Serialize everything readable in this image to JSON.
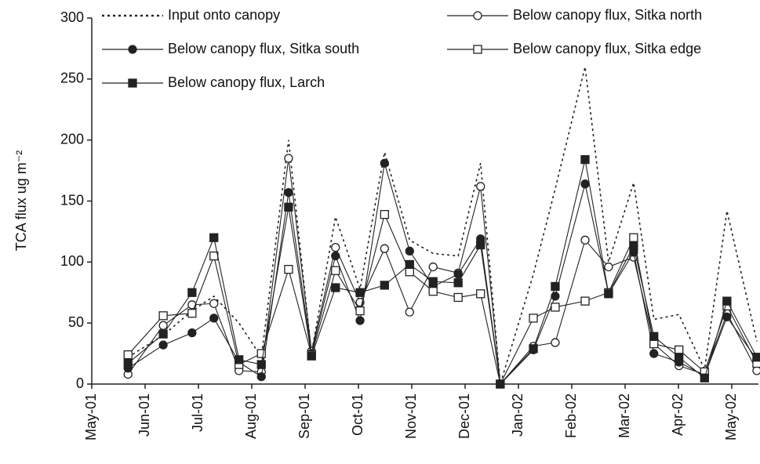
{
  "chart_data": {
    "type": "line",
    "ylabel": "TCA flux ug m⁻²",
    "xlim": [
      0,
      12.5
    ],
    "xticks": [
      {
        "value": 0,
        "label": "May-01"
      },
      {
        "value": 1,
        "label": "Jun-01"
      },
      {
        "value": 2,
        "label": "Jul-01"
      },
      {
        "value": 3,
        "label": "Aug-01"
      },
      {
        "value": 4,
        "label": "Sep-01"
      },
      {
        "value": 5,
        "label": "Oct-01"
      },
      {
        "value": 6,
        "label": "Nov-01"
      },
      {
        "value": 7,
        "label": "Dec-01"
      },
      {
        "value": 8,
        "label": "Jan-02"
      },
      {
        "value": 9,
        "label": "Feb-02"
      },
      {
        "value": 10,
        "label": "Mar-02"
      },
      {
        "value": 11,
        "label": "Apr-02"
      },
      {
        "value": 12,
        "label": "May-02"
      }
    ],
    "ylim": [
      0,
      300
    ],
    "yticks": [
      0,
      50,
      100,
      150,
      200,
      250,
      300
    ],
    "grid": false,
    "x": [
      0.68,
      1.34,
      1.88,
      2.29,
      2.76,
      3.18,
      3.69,
      4.12,
      4.57,
      5.03,
      5.49,
      5.96,
      6.4,
      6.87,
      7.29,
      7.66,
      8.28,
      8.69,
      9.25,
      9.69,
      10.16,
      10.54,
      11.01,
      11.49,
      11.91,
      12.47
    ],
    "series": [
      {
        "name": "Input onto canopy",
        "color": "#222222",
        "dash": "dotted",
        "marker": "none",
        "values": [
          22,
          40,
          60,
          72,
          50,
          22,
          200,
          25,
          137,
          78,
          190,
          118,
          107,
          105,
          181,
          0,
          90,
          160,
          260,
          100,
          165,
          53,
          57,
          12,
          142,
          35
        ]
      },
      {
        "name": "Below canopy flux, Sitka north",
        "color": "#222222",
        "dash": "solid",
        "marker": "circle-open",
        "values": [
          8,
          48,
          65,
          66,
          11,
          10,
          185,
          27,
          112,
          67,
          111,
          59,
          96,
          91,
          162,
          0,
          31,
          34,
          118,
          96,
          104,
          33,
          15,
          8,
          58,
          11
        ]
      },
      {
        "name": "Below canopy flux, Sitka south",
        "color": "#222222",
        "dash": "solid",
        "marker": "circle-filled",
        "values": [
          13,
          32,
          42,
          54,
          18,
          6,
          157,
          25,
          105,
          52,
          181,
          109,
          80,
          90,
          119,
          0,
          28,
          72,
          164,
          74,
          108,
          25,
          18,
          7,
          55,
          20
        ]
      },
      {
        "name": "Below canopy flux, Sitka edge",
        "color": "#222222",
        "dash": "solid",
        "marker": "square-open",
        "values": [
          24,
          56,
          58,
          105,
          16,
          25,
          94,
          24,
          93,
          60,
          139,
          92,
          76,
          71,
          74,
          0,
          54,
          63,
          68,
          75,
          120,
          33,
          28,
          10,
          64,
          17
        ]
      },
      {
        "name": "Below canopy flux, Larch",
        "color": "#222222",
        "dash": "solid",
        "marker": "square-filled",
        "values": [
          17,
          41,
          75,
          120,
          20,
          16,
          145,
          23,
          79,
          75,
          81,
          98,
          84,
          83,
          114,
          0,
          29,
          80,
          184,
          74,
          113,
          39,
          22,
          5,
          68,
          22
        ]
      }
    ]
  }
}
